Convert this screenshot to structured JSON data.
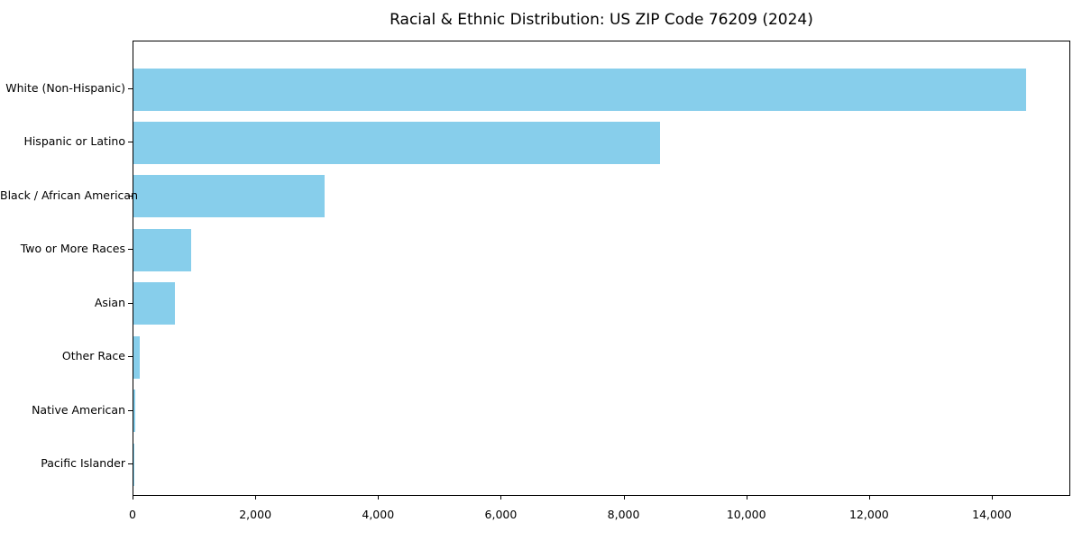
{
  "title": "Racial & Ethnic Distribution: US ZIP Code 76209 (2024)",
  "colors": {
    "bar": "#87CEEB",
    "spine": "#000000",
    "background": "#FFFFFF",
    "text": "#000000"
  },
  "chart_data": {
    "type": "bar",
    "orientation": "horizontal",
    "title": "Racial & Ethnic Distribution: US ZIP Code 76209 (2024)",
    "categories": [
      "White (Non-Hispanic)",
      "Hispanic or Latino",
      "Black / African American",
      "Two or More Races",
      "Asian",
      "Other Race",
      "Native American",
      "Pacific Islander"
    ],
    "values": [
      14550,
      8580,
      3110,
      940,
      675,
      100,
      25,
      10
    ],
    "xlabel": "",
    "ylabel": "",
    "xlim": [
      0,
      15278
    ],
    "xticks": [
      0,
      2000,
      4000,
      6000,
      8000,
      10000,
      12000,
      14000
    ],
    "xtick_labels": [
      "0",
      "2,000",
      "4,000",
      "6,000",
      "8,000",
      "10,000",
      "12,000",
      "14,000"
    ],
    "grid": false,
    "legend": false,
    "bar_color": "#87CEEB"
  }
}
